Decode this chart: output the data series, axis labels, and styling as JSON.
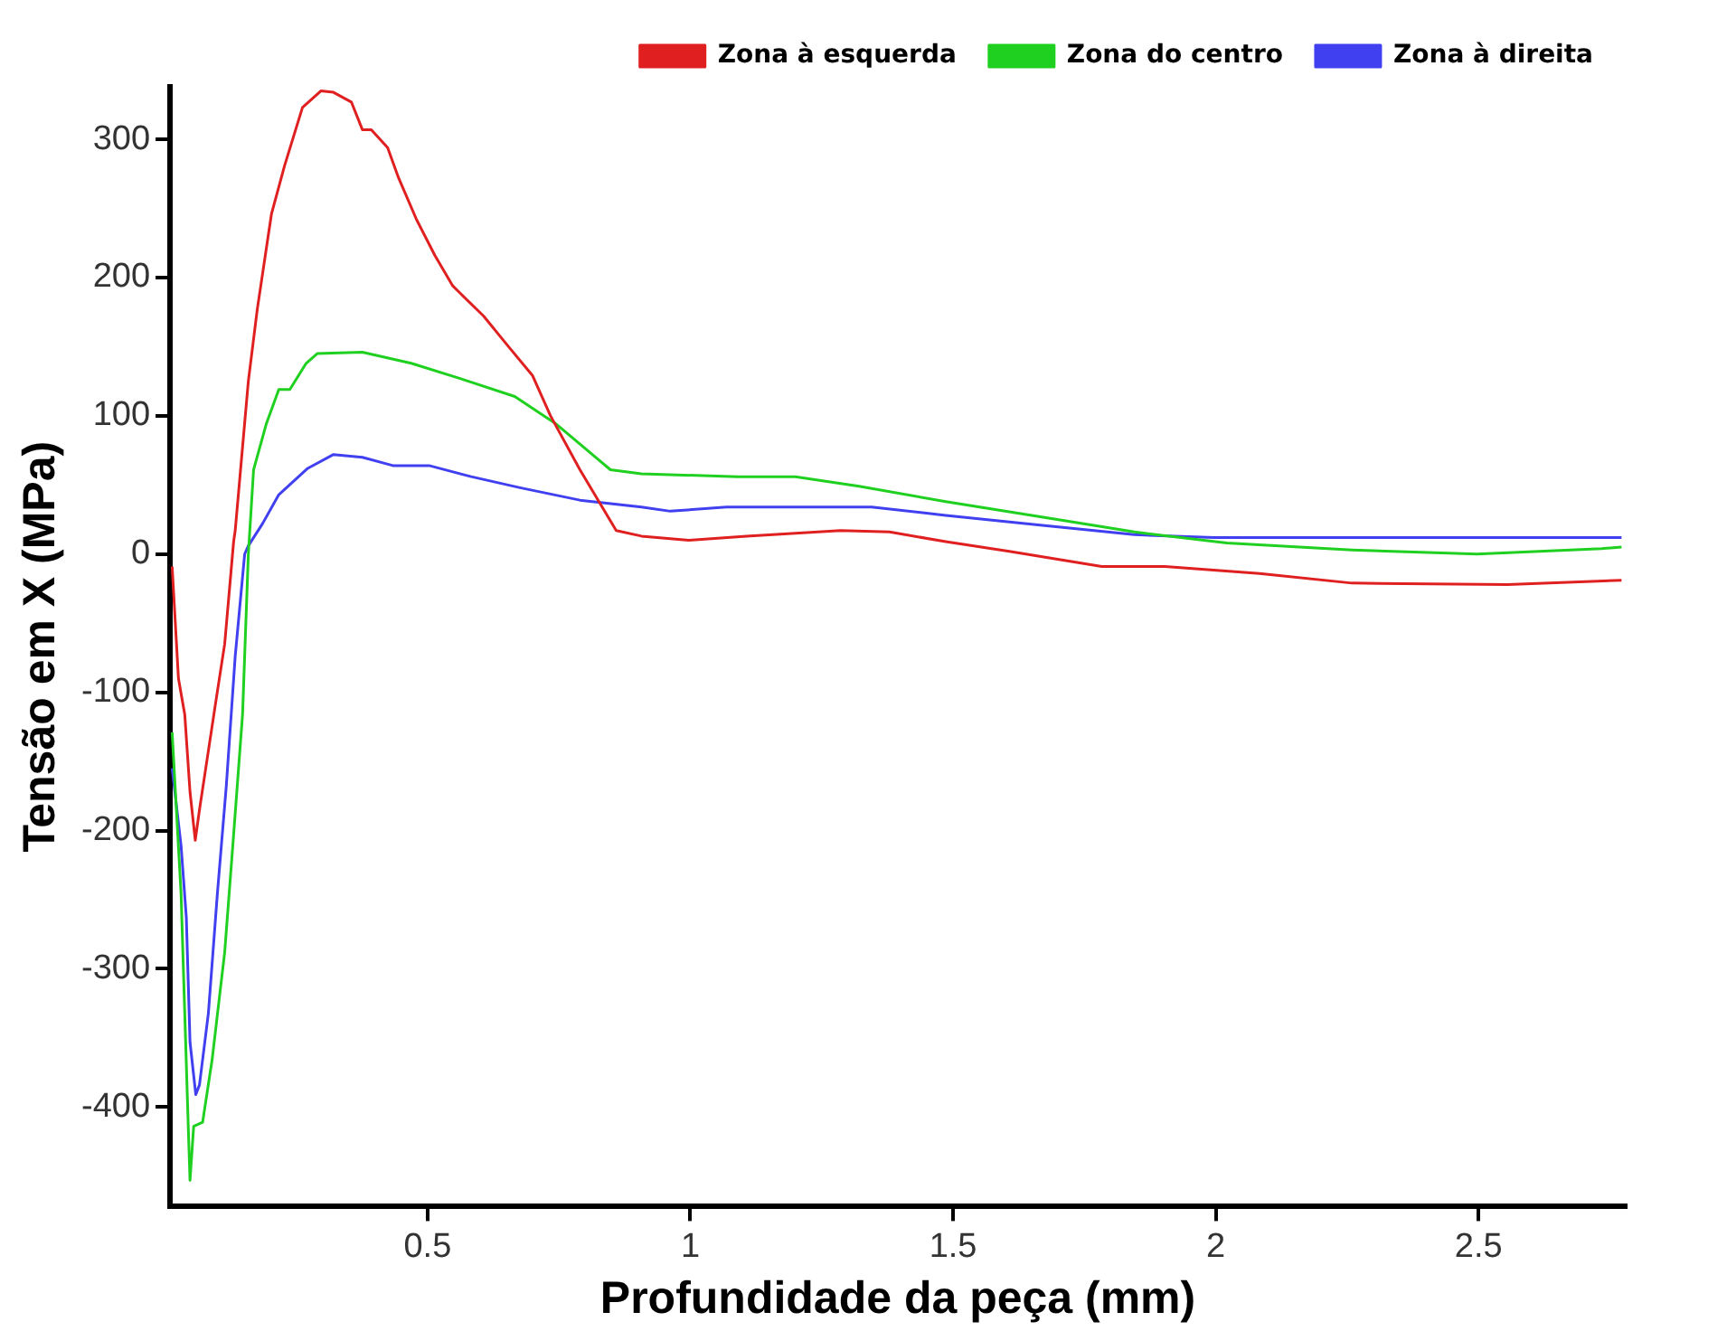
{
  "chart_data": {
    "type": "line",
    "xlabel": "Profundidade da peça (mm)",
    "ylabel": "Tensão em X (MPa)",
    "xlim": [
      0.01,
      2.78
    ],
    "ylim": [
      -472,
      338
    ],
    "xticks": [
      0.5,
      1,
      1.5,
      2,
      2.5
    ],
    "yticks": [
      -400,
      -300,
      -200,
      -100,
      0,
      100,
      200,
      300
    ],
    "grid": false,
    "legend": "top right",
    "marker": "none",
    "line_style": "solid",
    "series": [
      {
        "name": "Zona à esquerda",
        "color": "#e02020",
        "x": [
          0.014,
          0.026,
          0.038,
          0.048,
          0.058,
          0.066,
          0.097,
          0.114,
          0.131,
          0.134,
          0.159,
          0.176,
          0.203,
          0.228,
          0.262,
          0.297,
          0.321,
          0.355,
          0.376,
          0.393,
          0.424,
          0.445,
          0.479,
          0.514,
          0.548,
          0.607,
          0.652,
          0.7,
          0.734,
          0.79,
          0.859,
          0.907,
          0.997,
          1.107,
          1.286,
          1.379,
          1.486,
          1.607,
          1.783,
          1.903,
          2.083,
          2.259,
          2.555,
          2.772
        ],
        "values": [
          -9,
          -90,
          -116,
          -172,
          -207,
          -185,
          -107,
          -65,
          9,
          17,
          125,
          177,
          246,
          281,
          323,
          335,
          334,
          327,
          307,
          307,
          294,
          272,
          242,
          216,
          194,
          172,
          151,
          129,
          100,
          61,
          17,
          13,
          10,
          13,
          17,
          16,
          9,
          2,
          -9,
          -9,
          -14,
          -21,
          -22,
          -19
        ]
      },
      {
        "name": "Zona do centro",
        "color": "#20d020",
        "x": [
          0.014,
          0.031,
          0.038,
          0.045,
          0.048,
          0.055,
          0.072,
          0.09,
          0.114,
          0.131,
          0.148,
          0.159,
          0.169,
          0.193,
          0.217,
          0.238,
          0.269,
          0.29,
          0.376,
          0.469,
          0.562,
          0.666,
          0.745,
          0.848,
          0.907,
          1.09,
          1.2,
          1.321,
          1.486,
          1.666,
          1.845,
          2.021,
          2.259,
          2.497,
          2.734,
          2.772
        ],
        "values": [
          -129,
          -246,
          -332,
          -418,
          -453,
          -414,
          -411,
          -366,
          -288,
          -203,
          -116,
          0,
          61,
          94,
          119,
          119,
          138,
          145,
          146,
          138,
          127,
          114,
          94,
          61,
          58,
          56,
          56,
          49,
          38,
          27,
          16,
          8,
          3,
          0,
          4,
          5
        ]
      },
      {
        "name": "Zona à direita",
        "color": "#4040f0",
        "x": [
          0.014,
          0.031,
          0.041,
          0.048,
          0.059,
          0.066,
          0.083,
          0.1,
          0.117,
          0.134,
          0.152,
          0.159,
          0.186,
          0.217,
          0.272,
          0.321,
          0.376,
          0.434,
          0.503,
          0.583,
          0.676,
          0.79,
          0.907,
          0.962,
          1.069,
          1.345,
          1.486,
          1.666,
          1.845,
          1.997,
          2.772
        ],
        "values": [
          -155,
          -211,
          -263,
          -353,
          -391,
          -384,
          -332,
          -246,
          -168,
          -74,
          0,
          6,
          22,
          43,
          62,
          72,
          70,
          64,
          64,
          56,
          48,
          39,
          34,
          31,
          34,
          34,
          28,
          21,
          14,
          12,
          12
        ]
      }
    ]
  }
}
